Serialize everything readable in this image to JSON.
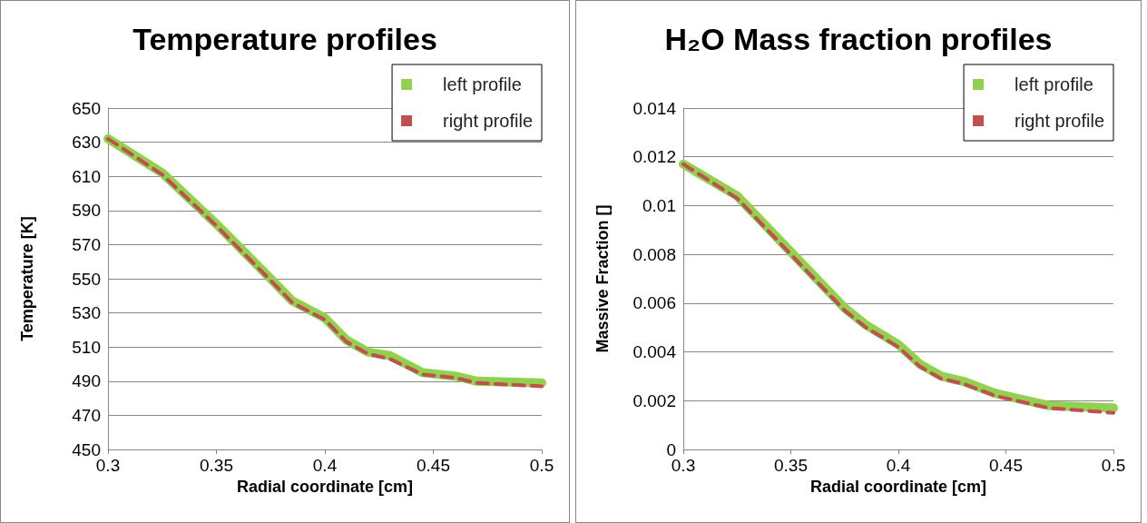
{
  "chart_data": [
    {
      "type": "line",
      "title": "Temperature profiles",
      "xlabel": "Radial coordinate [cm]",
      "ylabel": "Temperature [K]",
      "xlim": [
        0.3,
        0.5
      ],
      "xticks": [
        0.3,
        0.35,
        0.4,
        0.45,
        0.5
      ],
      "ylim": [
        450,
        650
      ],
      "yticks": [
        450,
        470,
        490,
        510,
        530,
        550,
        570,
        590,
        610,
        630,
        650
      ],
      "grid": "y",
      "legend": "top right",
      "marker": "none",
      "series": [
        {
          "name": "left profile",
          "color": "#92d050",
          "line_style": "solid",
          "x": [
            0.3,
            0.325,
            0.35,
            0.375,
            0.385,
            0.4,
            0.41,
            0.42,
            0.43,
            0.445,
            0.46,
            0.47,
            0.5
          ],
          "values": [
            632,
            612,
            582,
            550,
            537,
            527,
            514,
            507,
            505,
            495,
            493,
            490,
            489
          ]
        },
        {
          "name": "right profile",
          "color": "#c0504d",
          "line_style": "dashed",
          "x": [
            0.3,
            0.325,
            0.35,
            0.375,
            0.385,
            0.4,
            0.41,
            0.42,
            0.43,
            0.445,
            0.46,
            0.47,
            0.5
          ],
          "values": [
            632,
            611,
            581,
            549,
            536,
            526,
            513,
            506,
            503,
            494,
            492,
            489,
            487
          ]
        }
      ]
    },
    {
      "type": "line",
      "title": "H₂O Mass fraction profiles",
      "xlabel": "Radial coordinate [cm]",
      "ylabel": "Massive Fraction []",
      "xlim": [
        0.3,
        0.5
      ],
      "xticks": [
        0.3,
        0.35,
        0.4,
        0.45,
        0.5
      ],
      "ylim": [
        0,
        0.014
      ],
      "yticks": [
        0,
        0.002,
        0.004,
        0.006,
        0.008,
        0.01,
        0.012,
        0.014
      ],
      "grid": "y",
      "legend": "top right",
      "marker": "none",
      "series": [
        {
          "name": "left profile",
          "color": "#92d050",
          "line_style": "solid",
          "x": [
            0.3,
            0.325,
            0.35,
            0.375,
            0.385,
            0.4,
            0.41,
            0.42,
            0.43,
            0.445,
            0.46,
            0.47,
            0.5
          ],
          "values": [
            0.0117,
            0.0104,
            0.0081,
            0.0058,
            0.0051,
            0.0043,
            0.0035,
            0.003,
            0.0028,
            0.0023,
            0.002,
            0.0018,
            0.0017
          ]
        },
        {
          "name": "right profile",
          "color": "#c0504d",
          "line_style": "dashed",
          "x": [
            0.3,
            0.325,
            0.35,
            0.375,
            0.385,
            0.4,
            0.41,
            0.42,
            0.43,
            0.445,
            0.46,
            0.47,
            0.5
          ],
          "values": [
            0.0117,
            0.0103,
            0.008,
            0.0057,
            0.005,
            0.0042,
            0.0034,
            0.0029,
            0.0027,
            0.0022,
            0.0019,
            0.0017,
            0.0015
          ]
        }
      ]
    }
  ]
}
